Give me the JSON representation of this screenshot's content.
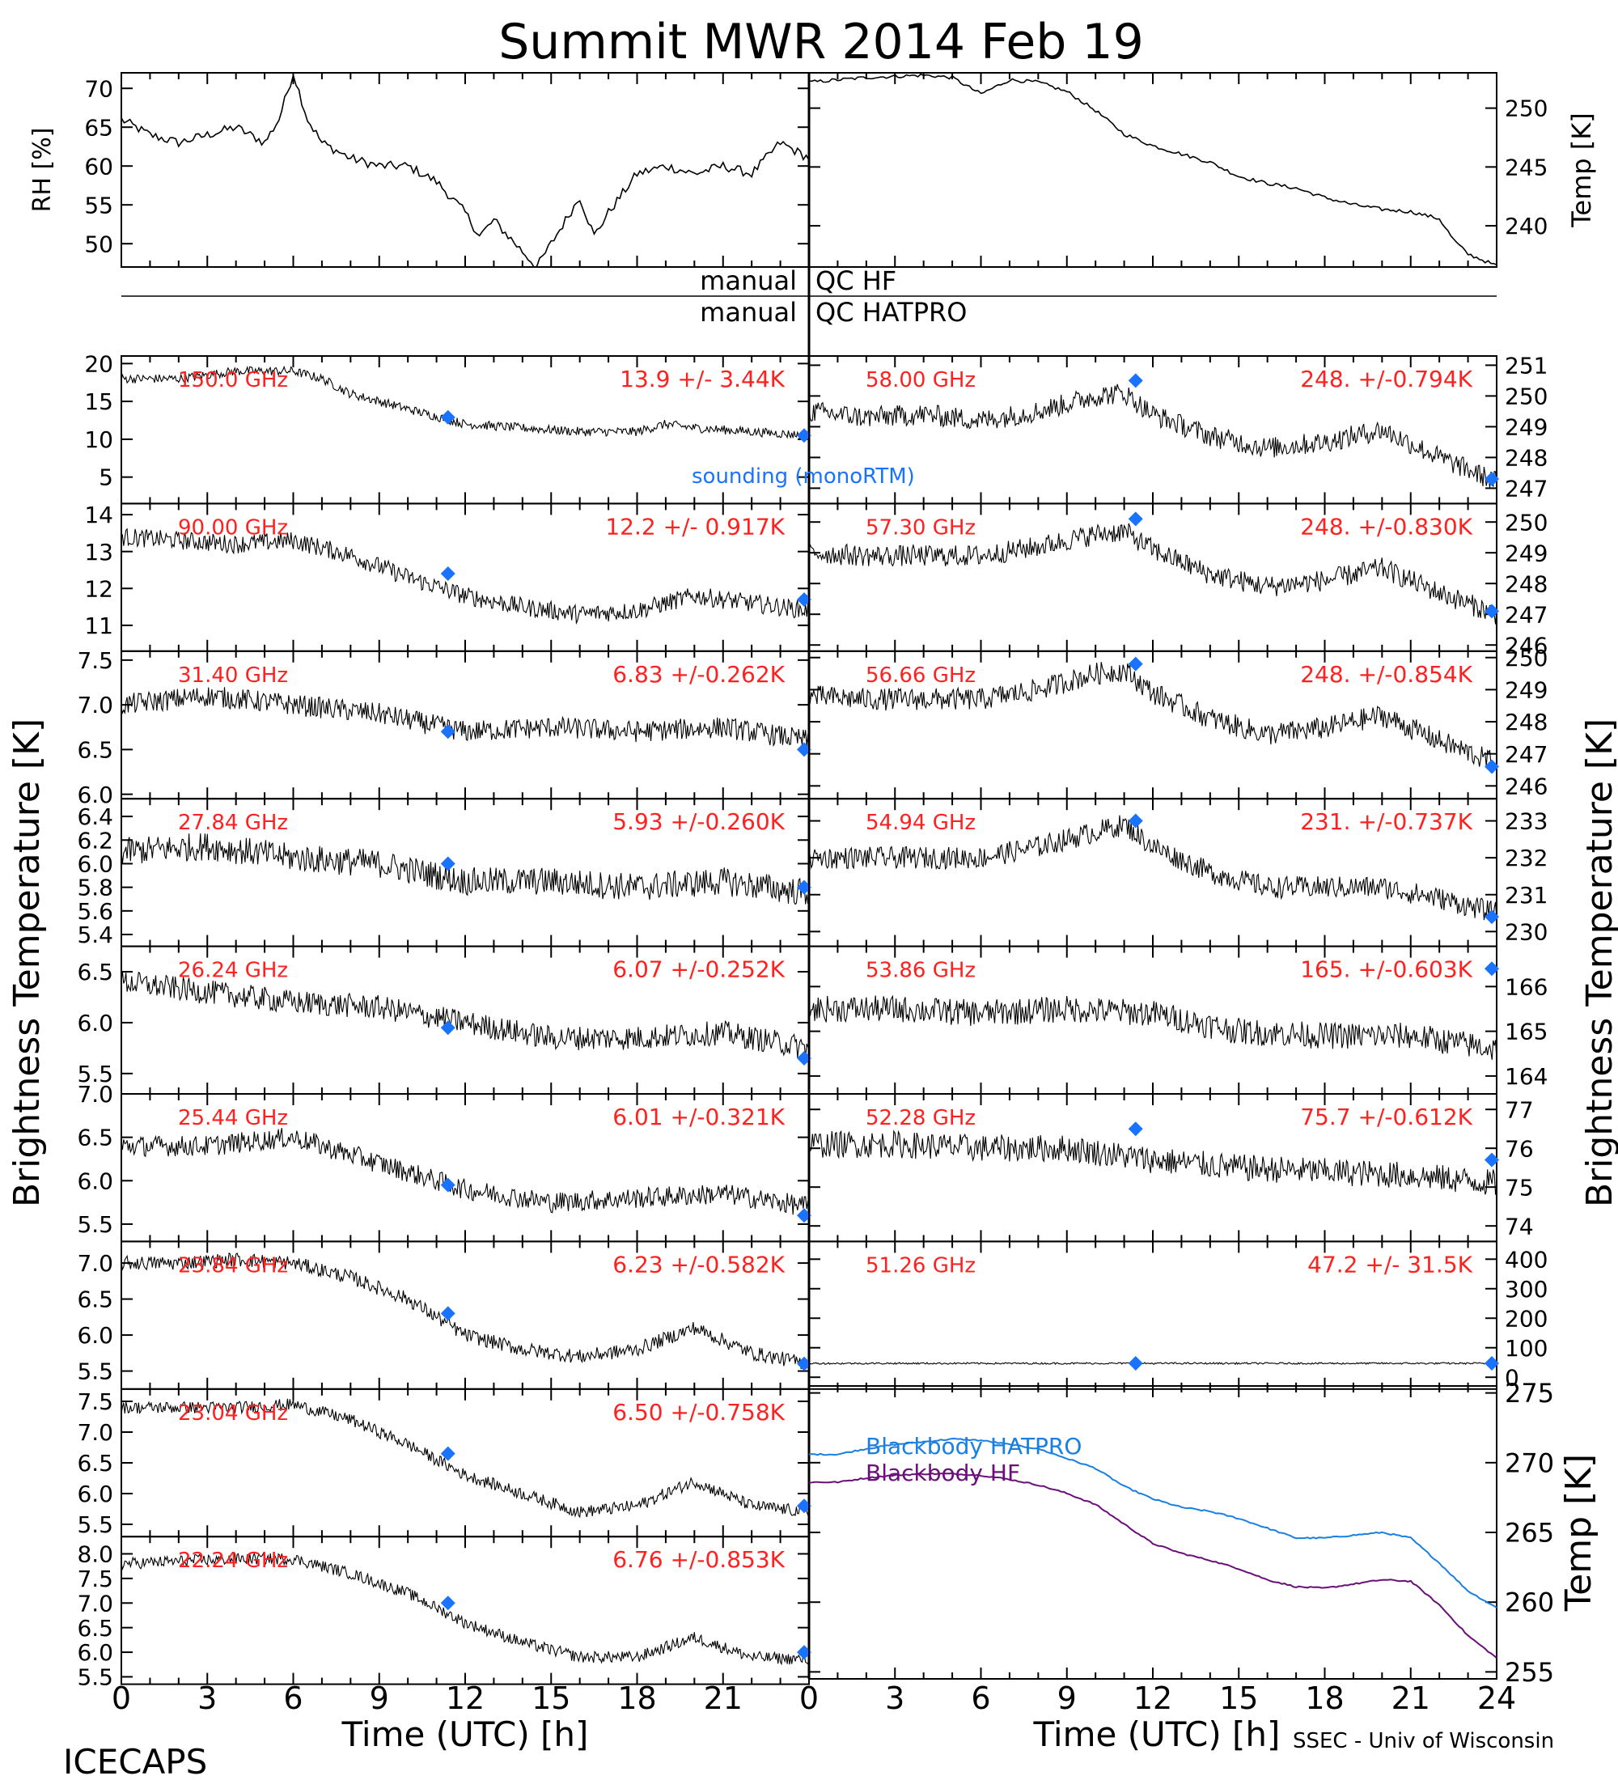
{
  "title": "Summit MWR 2014 Feb 19",
  "footer": {
    "left": "ICECAPS",
    "right": "SSEC - Univ of Wisconsin"
  },
  "left_axis_label": "Brightness Temperature [K]",
  "right_axis_label": "Brightness Temperature [K]",
  "qc_labels": {
    "hf_left": "manual",
    "hf_right": "QC HF",
    "hatpro_left": "manual",
    "hatpro_right": "QC HATPRO"
  },
  "legend_sounding": "sounding (monoRTM)",
  "colors": {
    "trace": "#000000",
    "sounding": "#1a73ff",
    "annotation": "#ff2020",
    "bb_hatpro": "#1a7fe0",
    "bb_hf": "#6a0f7a"
  },
  "chart_data": [
    {
      "id": "rh",
      "type": "line",
      "ylabel": "RH [%]",
      "ylim": [
        47,
        72
      ],
      "yticks": [
        "70",
        "65",
        "60",
        "55",
        "50"
      ],
      "ytick_values": [
        70,
        65,
        60,
        55,
        50
      ],
      "x": [
        0,
        1,
        2,
        3,
        4,
        5,
        5.5,
        6,
        6.5,
        7,
        8,
        9,
        10,
        11,
        12,
        12.5,
        13,
        14,
        14.5,
        15,
        16,
        16.5,
        17,
        18,
        19,
        20,
        21,
        22,
        23,
        24
      ],
      "values": [
        66,
        64,
        63,
        64,
        65,
        63,
        66,
        72,
        66,
        63,
        61,
        60,
        60,
        58,
        54,
        51,
        53,
        49,
        47,
        50,
        56,
        51,
        54,
        59,
        60,
        59,
        60,
        59,
        63,
        61
      ]
    },
    {
      "id": "temp",
      "type": "line",
      "ylabel": "Temp [K]",
      "ylim": [
        236.5,
        253
      ],
      "yticks": [
        "250",
        "245",
        "240"
      ],
      "ytick_values": [
        250,
        245,
        240
      ],
      "x": [
        0,
        2,
        4,
        5,
        6,
        7,
        8,
        9,
        10,
        11,
        12,
        14,
        15,
        16,
        17,
        18,
        19,
        20,
        21,
        22,
        22.5,
        23,
        24
      ],
      "values": [
        252.2,
        252.6,
        252.8,
        252.6,
        251.2,
        252.4,
        252.2,
        251.4,
        249.8,
        247.8,
        246.8,
        245.4,
        244.2,
        243.6,
        243.2,
        242.4,
        241.8,
        241.4,
        241.2,
        240.6,
        238.8,
        237.6,
        236.6
      ]
    },
    {
      "id": "hf",
      "type": "line",
      "title": "Blackbody",
      "ylabel": "Temp [K]",
      "ylim": [
        254.5,
        275.5
      ],
      "yticks": [
        "275",
        "270",
        "265",
        "260",
        "255"
      ],
      "ytick_values": [
        275,
        270,
        265,
        260,
        255
      ],
      "x": [
        0,
        1,
        2,
        3,
        4,
        5,
        6,
        7,
        8,
        9,
        10,
        11,
        12,
        13,
        14,
        15,
        16,
        17,
        18,
        19,
        20,
        21,
        22,
        23,
        24
      ],
      "series": [
        {
          "name": "Blackbody HATPRO",
          "values": [
            270.6,
            270.6,
            271.0,
            271.3,
            271.5,
            271.7,
            271.6,
            271.3,
            271.0,
            270.3,
            269.6,
            268.3,
            267.4,
            266.8,
            266.5,
            266.0,
            265.3,
            264.6,
            264.6,
            264.8,
            265.0,
            264.6,
            262.8,
            260.8,
            259.6
          ]
        },
        {
          "name": "Blackbody HF",
          "values": [
            268.6,
            268.6,
            268.9,
            269.1,
            269.2,
            269.2,
            269.1,
            268.8,
            268.4,
            267.8,
            267.0,
            265.6,
            264.2,
            263.5,
            263.0,
            262.4,
            261.6,
            261.1,
            261.0,
            261.3,
            261.6,
            261.5,
            259.8,
            257.6,
            256.0
          ]
        }
      ]
    },
    {
      "id": "ch-l1",
      "type": "scatter",
      "label": "150.0 GHz",
      "stats": "13.9 +/- 3.44K",
      "ylim": [
        1.5,
        21
      ],
      "yticks": [
        "20",
        "15",
        "10",
        "5"
      ],
      "ytick_values": [
        20,
        15,
        10,
        5
      ],
      "x": [
        0,
        2,
        4,
        6,
        7,
        8,
        10,
        12,
        14,
        16,
        18,
        19,
        20,
        22,
        24
      ],
      "values": [
        18,
        18,
        19,
        19,
        18,
        16,
        14,
        12,
        11.5,
        11,
        11,
        12,
        11.5,
        11,
        10.5
      ],
      "sounding": [
        {
          "x": 11.4,
          "y": 12.9
        },
        {
          "x": 24,
          "y": 10.5
        }
      ],
      "noise": 0.6
    },
    {
      "id": "ch-l2",
      "type": "scatter",
      "label": "90.00 GHz",
      "stats": "12.2 +/- 0.917K",
      "ylim": [
        10.3,
        14.3
      ],
      "yticks": [
        "14",
        "13",
        "12",
        "11"
      ],
      "ytick_values": [
        14,
        13,
        12,
        11
      ],
      "x": [
        0,
        2,
        4,
        6,
        8,
        10,
        12,
        14,
        16,
        18,
        20,
        22,
        24
      ],
      "values": [
        13.4,
        13.3,
        13.2,
        13.3,
        12.9,
        12.3,
        11.8,
        11.5,
        11.3,
        11.4,
        11.8,
        11.6,
        11.4
      ],
      "sounding": [
        {
          "x": 11.4,
          "y": 12.4
        },
        {
          "x": 24,
          "y": 11.7
        }
      ],
      "noise": 0.25
    },
    {
      "id": "ch-l3",
      "type": "scatter",
      "label": "31.40 GHz",
      "stats": "6.83 +/-0.262K",
      "ylim": [
        5.95,
        7.6
      ],
      "yticks": [
        "7.5",
        "7.0",
        "6.5",
        "6.0"
      ],
      "ytick_values": [
        7.5,
        7.0,
        6.5,
        6.0
      ],
      "x": [
        0,
        3,
        6,
        9,
        12,
        15,
        18,
        21,
        24
      ],
      "values": [
        7.0,
        7.1,
        7.0,
        6.9,
        6.7,
        6.75,
        6.7,
        6.75,
        6.6
      ],
      "sounding": [
        {
          "x": 11.4,
          "y": 6.7
        },
        {
          "x": 24,
          "y": 6.5
        }
      ],
      "noise": 0.12
    },
    {
      "id": "ch-l4",
      "type": "scatter",
      "label": "27.84 GHz",
      "stats": "5.93 +/-0.260K",
      "ylim": [
        5.3,
        6.55
      ],
      "yticks": [
        "6.4",
        "6.2",
        "6.0",
        "5.8",
        "5.6",
        "5.4"
      ],
      "ytick_values": [
        6.4,
        6.2,
        6.0,
        5.8,
        5.6,
        5.4
      ],
      "x": [
        0,
        3,
        6,
        9,
        12,
        15,
        18,
        21,
        24
      ],
      "values": [
        6.1,
        6.15,
        6.05,
        6.0,
        5.85,
        5.85,
        5.8,
        5.85,
        5.75
      ],
      "sounding": [
        {
          "x": 11.4,
          "y": 6.0
        },
        {
          "x": 24,
          "y": 5.8
        }
      ],
      "noise": 0.12
    },
    {
      "id": "ch-l5",
      "type": "scatter",
      "label": "26.24 GHz",
      "stats": "6.07 +/-0.252K",
      "ylim": [
        5.3,
        6.75
      ],
      "yticks": [
        "6.5",
        "6.0",
        "5.5"
      ],
      "ytick_values": [
        6.5,
        6.0,
        5.5
      ],
      "x": [
        0,
        3,
        6,
        9,
        12,
        15,
        18,
        21,
        24
      ],
      "values": [
        6.4,
        6.3,
        6.2,
        6.15,
        6.0,
        5.85,
        5.85,
        5.9,
        5.75
      ],
      "sounding": [
        {
          "x": 11.4,
          "y": 5.95
        },
        {
          "x": 24,
          "y": 5.65
        }
      ],
      "noise": 0.12
    },
    {
      "id": "ch-l6",
      "type": "scatter",
      "label": "25.44 GHz",
      "stats": "6.01 +/-0.321K",
      "ylim": [
        5.3,
        7.0
      ],
      "yticks": [
        "7.0",
        "6.5",
        "6.0",
        "5.5"
      ],
      "ytick_values": [
        7.0,
        6.5,
        6.0,
        5.5
      ],
      "x": [
        0,
        3,
        6,
        7,
        9,
        12,
        15,
        18,
        21,
        24
      ],
      "values": [
        6.4,
        6.4,
        6.5,
        6.4,
        6.2,
        5.9,
        5.75,
        5.8,
        5.85,
        5.7
      ],
      "sounding": [
        {
          "x": 11.4,
          "y": 5.95
        },
        {
          "x": 24,
          "y": 5.6
        }
      ],
      "noise": 0.12
    },
    {
      "id": "ch-l7",
      "type": "scatter",
      "label": "23.84 GHz",
      "stats": "6.23 +/-0.582K",
      "ylim": [
        5.25,
        7.3
      ],
      "yticks": [
        "7.0",
        "6.5",
        "6.0",
        "5.5"
      ],
      "ytick_values": [
        7.0,
        6.5,
        6.0,
        5.5
      ],
      "x": [
        0,
        2,
        4,
        6,
        8,
        10,
        12,
        14,
        16,
        18,
        20,
        22,
        24
      ],
      "values": [
        7.0,
        7.0,
        7.05,
        7.0,
        6.8,
        6.5,
        6.0,
        5.8,
        5.7,
        5.8,
        6.1,
        5.75,
        5.6
      ],
      "sounding": [
        {
          "x": 11.4,
          "y": 6.3
        },
        {
          "x": 24,
          "y": 5.6
        }
      ],
      "noise": 0.1
    },
    {
      "id": "ch-l8",
      "type": "scatter",
      "label": "23.04 GHz",
      "stats": "6.50 +/-0.758K",
      "ylim": [
        5.3,
        7.7
      ],
      "yticks": [
        "7.5",
        "7.0",
        "6.5",
        "6.0",
        "5.5"
      ],
      "ytick_values": [
        7.5,
        7.0,
        6.5,
        6.0,
        5.5
      ],
      "x": [
        0,
        2,
        4,
        6,
        8,
        10,
        12,
        14,
        16,
        18,
        20,
        22,
        24
      ],
      "values": [
        7.4,
        7.4,
        7.4,
        7.45,
        7.2,
        6.8,
        6.3,
        6.0,
        5.7,
        5.8,
        6.2,
        5.8,
        5.7
      ],
      "sounding": [
        {
          "x": 11.4,
          "y": 6.65
        },
        {
          "x": 24,
          "y": 5.8
        }
      ],
      "noise": 0.1
    },
    {
      "id": "ch-l9",
      "type": "scatter",
      "label": "22.24 GHz",
      "stats": "6.76 +/-0.853K",
      "ylim": [
        5.35,
        8.35
      ],
      "yticks": [
        "8.0",
        "7.5",
        "7.0",
        "6.5",
        "6.0",
        "5.5"
      ],
      "ytick_values": [
        8.0,
        7.5,
        7.0,
        6.5,
        6.0,
        5.5
      ],
      "x": [
        0,
        2,
        4,
        6,
        8,
        10,
        12,
        14,
        16,
        18,
        20,
        22,
        24
      ],
      "values": [
        7.8,
        7.85,
        7.9,
        7.9,
        7.6,
        7.2,
        6.6,
        6.2,
        5.9,
        5.9,
        6.3,
        5.9,
        5.85
      ],
      "sounding": [
        {
          "x": 11.4,
          "y": 7.0
        },
        {
          "x": 24,
          "y": 6.0
        }
      ],
      "noise": 0.12
    },
    {
      "id": "ch-r1",
      "type": "scatter",
      "label": "58.00 GHz",
      "stats": "248. +/-0.794K",
      "ylim": [
        246.5,
        251.3
      ],
      "yticks": [
        "251",
        "250",
        "249",
        "248",
        "247"
      ],
      "ytick_values": [
        251,
        250,
        249,
        248,
        247
      ],
      "x": [
        0,
        2,
        4,
        6,
        8,
        10,
        11,
        12,
        14,
        16,
        18,
        20,
        22,
        24
      ],
      "values": [
        249.5,
        249.3,
        249.4,
        249.2,
        249.5,
        250.0,
        250.1,
        249.4,
        248.7,
        248.3,
        248.5,
        248.9,
        248.0,
        247.2
      ],
      "sounding": [
        {
          "x": 11.4,
          "y": 250.5
        },
        {
          "x": 24,
          "y": 247.3
        }
      ],
      "noise": 0.35
    },
    {
      "id": "ch-r2",
      "type": "scatter",
      "label": "57.30 GHz",
      "stats": "248. +/-0.830K",
      "ylim": [
        245.8,
        250.6
      ],
      "yticks": [
        "250",
        "249",
        "248",
        "247",
        "246"
      ],
      "ytick_values": [
        250,
        249,
        248,
        247,
        246
      ],
      "x": [
        0,
        2,
        4,
        6,
        8,
        10,
        11,
        12,
        14,
        16,
        18,
        20,
        22,
        24
      ],
      "values": [
        249.0,
        248.9,
        248.9,
        248.9,
        249.2,
        249.6,
        249.7,
        249.1,
        248.3,
        247.9,
        248.1,
        248.5,
        247.7,
        247.0
      ],
      "sounding": [
        {
          "x": 11.4,
          "y": 250.1
        },
        {
          "x": 24,
          "y": 247.1
        }
      ],
      "noise": 0.35
    },
    {
      "id": "ch-r3",
      "type": "scatter",
      "label": "56.66 GHz",
      "stats": "248. +/-0.854K",
      "ylim": [
        245.6,
        250.2
      ],
      "yticks": [
        "250",
        "249",
        "248",
        "247",
        "246"
      ],
      "ytick_values": [
        250,
        249,
        248,
        247,
        246
      ],
      "x": [
        0,
        2,
        4,
        6,
        8,
        10,
        11,
        12,
        14,
        16,
        18,
        20,
        22,
        24
      ],
      "values": [
        248.8,
        248.7,
        248.7,
        248.7,
        249.0,
        249.5,
        249.6,
        248.9,
        248.1,
        247.6,
        247.8,
        248.2,
        247.4,
        246.7
      ],
      "sounding": [
        {
          "x": 11.4,
          "y": 249.8
        },
        {
          "x": 24,
          "y": 246.6
        }
      ],
      "noise": 0.35
    },
    {
      "id": "ch-r4",
      "type": "scatter",
      "label": "54.94 GHz",
      "stats": "231. +/-0.737K",
      "ylim": [
        229.6,
        233.6
      ],
      "yticks": [
        "233",
        "232",
        "231",
        "230"
      ],
      "ytick_values": [
        233,
        232,
        231,
        230
      ],
      "x": [
        0,
        2,
        4,
        6,
        8,
        10,
        11,
        12,
        14,
        16,
        18,
        20,
        22,
        24
      ],
      "values": [
        232.0,
        232.0,
        232.0,
        232.0,
        232.3,
        232.7,
        232.9,
        232.3,
        231.6,
        231.2,
        231.2,
        231.2,
        230.9,
        230.5
      ],
      "sounding": [
        {
          "x": 11.4,
          "y": 233.0
        },
        {
          "x": 24,
          "y": 230.4
        }
      ],
      "noise": 0.3
    },
    {
      "id": "ch-r5",
      "type": "scatter",
      "label": "53.86 GHz",
      "stats": "165. +/-0.603K",
      "ylim": [
        163.6,
        166.9
      ],
      "yticks": [
        "166",
        "165",
        "164"
      ],
      "ytick_values": [
        166,
        165,
        164
      ],
      "x": [
        0,
        3,
        6,
        9,
        12,
        15,
        18,
        21,
        24
      ],
      "values": [
        165.5,
        165.5,
        165.4,
        165.5,
        165.4,
        165.0,
        164.9,
        164.9,
        164.6
      ],
      "sounding": [
        {
          "x": 24,
          "y": 166.4
        }
      ],
      "noise": 0.3
    },
    {
      "id": "ch-r6",
      "type": "scatter",
      "label": "52.28 GHz",
      "stats": "75.7 +/-0.612K",
      "ylim": [
        73.6,
        77.4
      ],
      "yticks": [
        "77",
        "76",
        "75",
        "74"
      ],
      "ytick_values": [
        77,
        76,
        75,
        74
      ],
      "x": [
        0,
        3,
        6,
        9,
        12,
        15,
        18,
        21,
        24
      ],
      "values": [
        76.1,
        76.1,
        76.0,
        76.0,
        75.7,
        75.5,
        75.4,
        75.3,
        75.1
      ],
      "sounding": [
        {
          "x": 11.4,
          "y": 76.5
        },
        {
          "x": 24,
          "y": 75.7
        }
      ],
      "noise": 0.35
    },
    {
      "id": "ch-r7",
      "type": "scatter",
      "label": "51.26 GHz",
      "stats": "47.2 +/- 31.5K",
      "ylim": [
        -40,
        460
      ],
      "yticks": [
        "400",
        "300",
        "200",
        "100",
        "0"
      ],
      "ytick_values": [
        400,
        300,
        200,
        100,
        0
      ],
      "x": [
        0,
        6,
        12,
        18,
        24
      ],
      "values": [
        47,
        47,
        47,
        47,
        47
      ],
      "sounding": [
        {
          "x": 11.4,
          "y": 47
        },
        {
          "x": 24,
          "y": 47
        }
      ],
      "noise": 3
    }
  ],
  "x_axis": {
    "label": "Time (UTC) [h]",
    "left_ticks": [
      "0",
      "3",
      "6",
      "9",
      "12",
      "15",
      "18",
      "21"
    ],
    "right_ticks": [
      "0",
      "3",
      "6",
      "9",
      "12",
      "15",
      "18",
      "21",
      "24"
    ],
    "xlim": [
      0,
      24
    ]
  }
}
